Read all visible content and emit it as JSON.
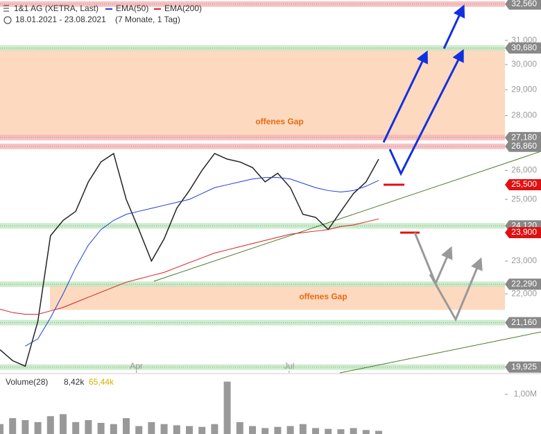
{
  "chart_data": {
    "type": "line",
    "title": "1&1 AG (XETRA, Last)",
    "date_range": "18.01.2021 - 23.08.2021",
    "period": "(7 Monate, 1 Tag)",
    "log_scale": true,
    "ylim": [
      19770,
      32740
    ],
    "xlim": [
      0,
      40
    ],
    "yticks": [
      {
        "value": 31000,
        "label": "31,000"
      },
      {
        "value": 30000,
        "label": "30,000"
      },
      {
        "value": 29000,
        "label": "29,000"
      },
      {
        "value": 28000,
        "label": "28,000"
      },
      {
        "value": 26000,
        "label": "26,000"
      },
      {
        "value": 25000,
        "label": "25,000"
      },
      {
        "value": 23000,
        "label": "23,000"
      },
      {
        "value": 22000,
        "label": "22,000"
      }
    ],
    "xticks": [
      {
        "value": 10.8,
        "label": "Apr"
      },
      {
        "value": 22.9,
        "label": "Jul"
      }
    ],
    "series": [
      {
        "name": "Last",
        "color": "#222222",
        "values": [
          20400,
          20100,
          19950,
          21200,
          23800,
          24300,
          24600,
          25600,
          26300,
          26600,
          25000,
          24000,
          23000,
          23700,
          24700,
          25300,
          26000,
          26600,
          26400,
          26300,
          26100,
          25600,
          25900,
          25400,
          24500,
          24400,
          24000,
          24600,
          25200,
          25600,
          26400
        ]
      },
      {
        "name": "EMA(50)",
        "color": "#1a3fd6",
        "values": [
          null,
          null,
          20500,
          20700,
          21300,
          22000,
          22800,
          23500,
          24000,
          24300,
          24500,
          24600,
          24700,
          24800,
          24900,
          25000,
          25200,
          25400,
          25500,
          25600,
          25700,
          25750,
          25750,
          25700,
          25550,
          25400,
          25300,
          25250,
          25300,
          25450,
          25650
        ]
      },
      {
        "name": "EMA(200)",
        "color": "#d42020",
        "values": [
          21550,
          21450,
          21400,
          21400,
          21500,
          21600,
          21750,
          21900,
          22050,
          22200,
          22350,
          22450,
          22550,
          22650,
          22800,
          22950,
          23100,
          23250,
          23350,
          23450,
          23550,
          23650,
          23750,
          23850,
          23900,
          23950,
          24000,
          24100,
          24150,
          24250,
          24350
        ]
      }
    ],
    "levels": [
      {
        "value": 32560,
        "label": "32,560",
        "color": "#888888"
      },
      {
        "value": 30680,
        "label": "30,680",
        "color": "#888888"
      },
      {
        "value": 27180,
        "label": "27,180",
        "color": "#888888"
      },
      {
        "value": 26860,
        "label": "26,860",
        "color": "#888888"
      },
      {
        "value": 25500,
        "label": "25,500",
        "color": "#e01010"
      },
      {
        "value": 24120,
        "label": "24,120",
        "color": "#888888"
      },
      {
        "value": 23900,
        "label": "23,900",
        "color": "#e01010"
      },
      {
        "value": 22290,
        "label": "22,290",
        "color": "#888888"
      },
      {
        "value": 21160,
        "label": "21,160",
        "color": "#888888"
      },
      {
        "value": 19925,
        "label": "19,925",
        "color": "#888888"
      }
    ],
    "gaps": [
      {
        "label": "offenes Gap",
        "top": 30680,
        "bottom": 27180
      },
      {
        "label": "offenes Gap",
        "top": 22290,
        "bottom": 21530
      }
    ],
    "volume": {
      "label": "Volume(28)",
      "last": "8,42k",
      "average": "65,44k",
      "color": "#999999",
      "ylim": [
        0,
        1400000
      ],
      "yticks": [
        {
          "value": 1000000,
          "label": "1,00M"
        }
      ],
      "values": [
        250000,
        400000,
        350000,
        300000,
        450000,
        500000,
        300000,
        350000,
        280000,
        250000,
        400000,
        200000,
        300000,
        250000,
        220000,
        200000,
        180000,
        250000,
        1320000,
        300000,
        200000,
        150000,
        180000,
        200000,
        250000,
        150000,
        130000,
        120000,
        150000,
        100000,
        80000
      ]
    }
  }
}
